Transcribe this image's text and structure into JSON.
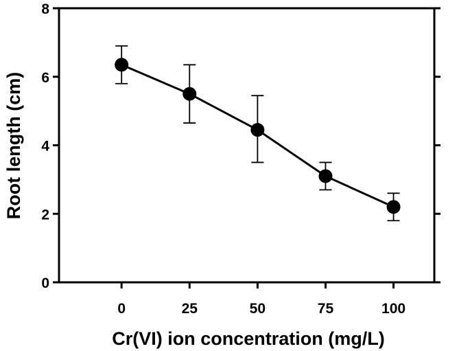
{
  "chart_data": {
    "type": "line",
    "title": "",
    "xlabel": "Cr(VI) ion concentration (mg/L)",
    "ylabel": "Root length (cm)",
    "x": [
      0,
      25,
      50,
      75,
      100
    ],
    "xticks": [
      "0",
      "25",
      "50",
      "75",
      "100"
    ],
    "xlim": [
      -23,
      115
    ],
    "ylim": [
      0,
      8
    ],
    "yticks": [
      "0",
      "2",
      "4",
      "6",
      "8"
    ],
    "grid": false,
    "series": [
      {
        "name": "Root length",
        "values": [
          6.35,
          5.5,
          4.45,
          3.1,
          2.2
        ],
        "error_high": [
          6.9,
          6.35,
          5.45,
          3.5,
          2.6
        ],
        "error_low": [
          5.8,
          4.65,
          3.5,
          2.7,
          1.8
        ]
      }
    ]
  }
}
